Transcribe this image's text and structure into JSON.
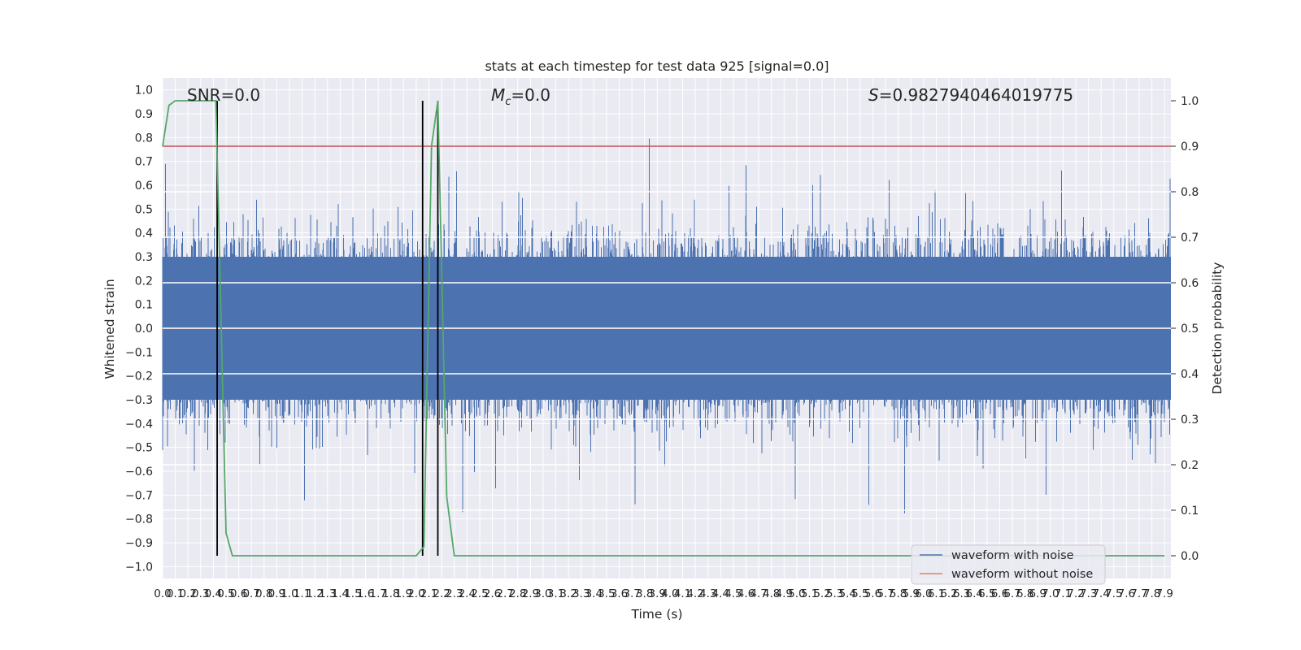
{
  "chart_data": {
    "type": "line",
    "title": "stats at each timestep for test data 925 [signal=0.0]",
    "xlabel": "Time (s)",
    "ylabel": "Whitened strain",
    "y2label": "Detection probability",
    "xlim": [
      0.0,
      7.95
    ],
    "ylim": [
      -1.05,
      1.05
    ],
    "y2lim": [
      -0.05,
      1.05
    ],
    "x_tick_step": 0.1,
    "x_tick_count": 80,
    "y_ticks": [
      "1.0",
      "0.9",
      "0.8",
      "0.7",
      "0.6",
      "0.5",
      "0.4",
      "0.3",
      "0.2",
      "0.1",
      "0.0",
      "-0.1",
      "-0.2",
      "-0.3",
      "-0.4",
      "-0.5",
      "-0.6",
      "-0.7",
      "-0.8",
      "-0.9",
      "-1.0"
    ],
    "y2_ticks": [
      "1.0",
      "0.9",
      "0.8",
      "0.7",
      "0.6",
      "0.5",
      "0.4",
      "0.3",
      "0.2",
      "0.1",
      "0.0"
    ],
    "annotations": {
      "snr": "SNR=0.0",
      "mc_symbol": "M",
      "mc_subscript": "c",
      "mc_value": "=0.0",
      "s_symbol": "S",
      "s_value": "=0.9827940464019775"
    },
    "series": [
      {
        "name": "waveform with noise",
        "description": "dense noise, amplitude roughly within ±0.6, peaks up to ~1.0",
        "amplitude_range": [
          -0.97,
          1.0
        ]
      },
      {
        "name": "waveform without noise",
        "values": "constant 0.0"
      },
      {
        "detection_probability": [
          [
            0.0,
            0.9
          ],
          [
            0.05,
            0.99
          ],
          [
            0.1,
            1.0
          ],
          [
            0.2,
            1.0
          ],
          [
            0.3,
            1.0
          ],
          [
            0.42,
            1.0
          ],
          [
            0.5,
            0.05
          ],
          [
            0.55,
            0.0
          ],
          [
            2.0,
            0.0
          ],
          [
            2.06,
            0.02
          ],
          [
            2.12,
            0.9
          ],
          [
            2.17,
            1.0
          ],
          [
            2.24,
            0.13
          ],
          [
            2.3,
            0.0
          ],
          [
            7.9,
            0.0
          ]
        ]
      }
    ],
    "threshold_line_y2": 0.9,
    "vertical_lines_x": [
      0.43,
      2.05,
      2.17
    ],
    "legend_placement": "lower-right",
    "grid": true,
    "colors": {
      "noise": "#4c72b0",
      "clean": "#dd8452",
      "probability": "#55a868",
      "threshold": "#c44e52",
      "vertical": "#000000",
      "background": "#eaeaf2",
      "grid": "#ffffff"
    }
  }
}
